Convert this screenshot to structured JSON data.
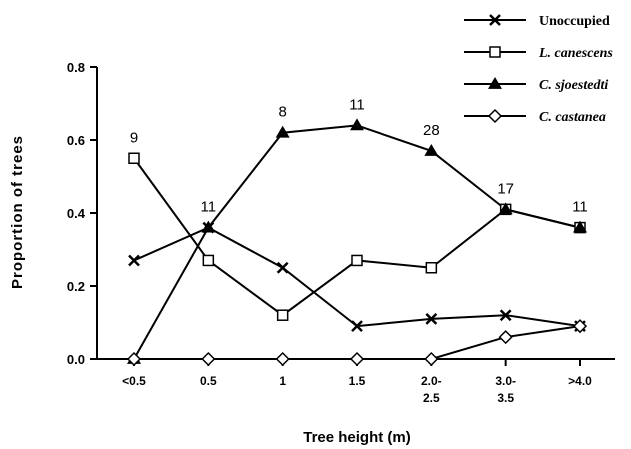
{
  "chart_data": {
    "type": "line",
    "xlabel": "Tree height (m)",
    "ylabel": "Proportion of trees",
    "categories": [
      [
        "<0.5"
      ],
      [
        "0.5"
      ],
      [
        "1"
      ],
      [
        "1.5"
      ],
      [
        "2.0-",
        "2.5"
      ],
      [
        "3.0-",
        "3.5"
      ],
      [
        ">4.0"
      ]
    ],
    "ylim": [
      0,
      0.8
    ],
    "yticks": [
      "0.0",
      "0.2",
      "0.4",
      "0.6",
      "0.8"
    ],
    "grid": false,
    "legend_position": "top-right",
    "sample_sizes": [
      "9",
      "11",
      "8",
      "11",
      "28",
      "17",
      "11"
    ],
    "series": [
      {
        "name": "Unoccupied",
        "marker": "x",
        "italic": false,
        "values": [
          0.27,
          0.36,
          0.25,
          0.09,
          0.11,
          0.12,
          0.09
        ]
      },
      {
        "name": "L. canescens",
        "marker": "open-square",
        "italic": true,
        "values": [
          0.55,
          0.27,
          0.12,
          0.27,
          0.25,
          0.41,
          0.36
        ]
      },
      {
        "name": "C. sjoestedti",
        "marker": "filled-triangle",
        "italic": true,
        "values": [
          0.0,
          0.36,
          0.62,
          0.64,
          0.57,
          0.41,
          0.36
        ]
      },
      {
        "name": "C. castanea",
        "marker": "open-diamond",
        "italic": true,
        "values": [
          0.0,
          0.0,
          0.0,
          0.0,
          0.0,
          0.06,
          0.09
        ]
      }
    ]
  }
}
